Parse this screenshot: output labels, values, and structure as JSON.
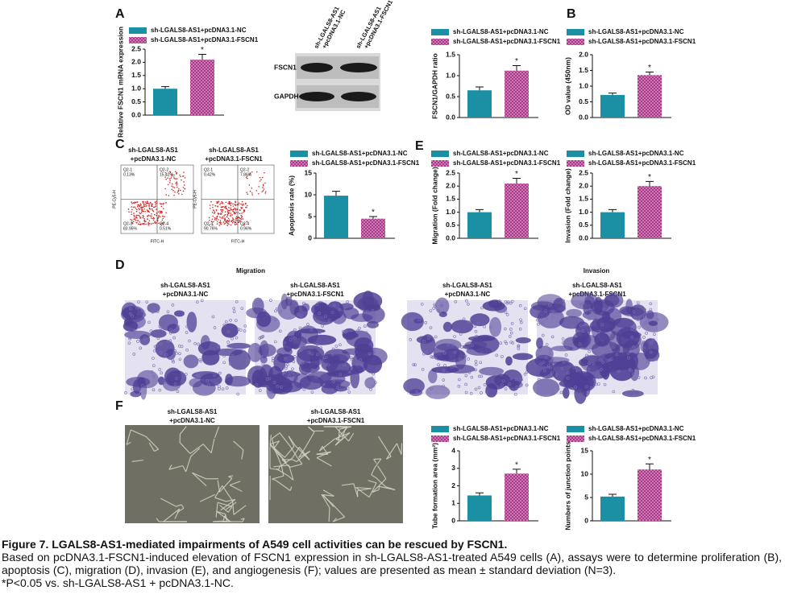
{
  "panel_labels": [
    "A",
    "B",
    "C",
    "D",
    "E",
    "F"
  ],
  "chart_data": [
    {
      "type": "bar",
      "ylabel": "Relative FSCN1 mRNA expression",
      "ylim": [
        0,
        2.5
      ],
      "yticks": [
        {
          "value": 0,
          "label": "0.0"
        },
        0.5,
        {
          "value": 1,
          "label": "1.0"
        },
        1.5,
        {
          "value": 2,
          "label": "2.0"
        },
        2.5
      ],
      "series": [
        {
          "name": "sh-LGALS8-AS1+pcDNA3.1-NC",
          "color": "#1b8fa3",
          "values": [
            1.0
          ],
          "errors": [
            0.08
          ]
        },
        {
          "name": "sh-LGALS8-AS1+pcDNA3.1-FSCN1",
          "color": "#a3307f",
          "pattern": "crosshatch",
          "values": [
            2.1
          ],
          "errors": [
            0.2
          ],
          "annotation": "*"
        }
      ]
    },
    {
      "type": "bar",
      "ylabel": "FSCN1/GAPDH ratio",
      "ylim": [
        0,
        1.5
      ],
      "yticks": [
        {
          "value": 0,
          "label": "0.0"
        },
        0.5,
        {
          "value": 1,
          "label": "1.0"
        },
        1.5
      ],
      "series": [
        {
          "name": "sh-LGALS8-AS1+pcDNA3.1-NC",
          "color": "#1b8fa3",
          "values": [
            0.65
          ],
          "errors": [
            0.08
          ]
        },
        {
          "name": "sh-LGALS8-AS1+pcDNA3.1-FSCN1",
          "color": "#a3307f",
          "pattern": "crosshatch",
          "values": [
            1.12
          ],
          "errors": [
            0.12
          ],
          "annotation": "*"
        }
      ]
    },
    {
      "type": "bar",
      "ylabel": "OD value (450nm)",
      "ylim": [
        0,
        2
      ],
      "yticks": [
        {
          "value": 0,
          "label": "0.0"
        },
        0.5,
        {
          "value": 1,
          "label": "1.0"
        },
        1.5,
        {
          "value": 2,
          "label": "2.0"
        }
      ],
      "series": [
        {
          "name": "sh-LGALS8-AS1+pcDNA3.1-NC",
          "color": "#1b8fa3",
          "values": [
            0.72
          ],
          "errors": [
            0.06
          ]
        },
        {
          "name": "sh-LGALS8-AS1+pcDNA3.1-FSCN1",
          "color": "#a3307f",
          "pattern": "crosshatch",
          "values": [
            1.35
          ],
          "errors": [
            0.1
          ],
          "annotation": "*"
        }
      ]
    },
    {
      "type": "bar",
      "ylabel": "Apoptosis rate (%)",
      "ylim": [
        0,
        15
      ],
      "yticks": [
        0,
        5,
        10,
        15
      ],
      "series": [
        {
          "name": "sh-LGALS8-AS1+pcDNA3.1-NC",
          "color": "#1b8fa3",
          "values": [
            9.8
          ],
          "errors": [
            1.0
          ]
        },
        {
          "name": "sh-LGALS8-AS1+pcDNA3.1-FSCN1",
          "color": "#a3307f",
          "pattern": "crosshatch",
          "values": [
            4.5
          ],
          "errors": [
            0.5
          ],
          "annotation": "*"
        }
      ]
    },
    {
      "type": "bar",
      "ylabel": "Migration (Fold change)",
      "ylim": [
        0,
        2.5
      ],
      "yticks": [
        {
          "value": 0,
          "label": "0.0"
        },
        0.5,
        {
          "value": 1,
          "label": "1.0"
        },
        1.5,
        {
          "value": 2,
          "label": "2.0"
        },
        2.5
      ],
      "series": [
        {
          "name": "sh-LGALS8-AS1+pcDNA3.1-NC",
          "color": "#1b8fa3",
          "values": [
            1.0
          ],
          "errors": [
            0.1
          ]
        },
        {
          "name": "sh-LGALS8-AS1+pcDNA3.1-FSCN1",
          "color": "#a3307f",
          "pattern": "crosshatch",
          "values": [
            2.1
          ],
          "errors": [
            0.2
          ],
          "annotation": "*"
        }
      ]
    },
    {
      "type": "bar",
      "ylabel": "Invasion (Fold change)",
      "ylim": [
        0,
        2.5
      ],
      "yticks": [
        {
          "value": 0,
          "label": "0.0"
        },
        0.5,
        {
          "value": 1,
          "label": "1.0"
        },
        1.5,
        {
          "value": 2,
          "label": "2.0"
        },
        2.5
      ],
      "series": [
        {
          "name": "sh-LGALS8-AS1+pcDNA3.1-NC",
          "color": "#1b8fa3",
          "values": [
            1.0
          ],
          "errors": [
            0.1
          ]
        },
        {
          "name": "sh-LGALS8-AS1+pcDNA3.1-FSCN1",
          "color": "#a3307f",
          "pattern": "crosshatch",
          "values": [
            2.0
          ],
          "errors": [
            0.18
          ],
          "annotation": "*"
        }
      ]
    },
    {
      "type": "bar",
      "ylabel": "Tube formation area (mm²)",
      "ylim": [
        0,
        4
      ],
      "yticks": [
        0,
        1,
        2,
        3,
        4
      ],
      "series": [
        {
          "name": "sh-LGALS8-AS1+pcDNA3.1-NC",
          "color": "#1b8fa3",
          "values": [
            1.45
          ],
          "errors": [
            0.15
          ]
        },
        {
          "name": "sh-LGALS8-AS1+pcDNA3.1-FSCN1",
          "color": "#a3307f",
          "pattern": "crosshatch",
          "values": [
            2.7
          ],
          "errors": [
            0.25
          ],
          "annotation": "*"
        }
      ]
    },
    {
      "type": "bar",
      "ylabel": "Numbers of junction points",
      "ylim": [
        0,
        15
      ],
      "yticks": [
        0,
        5,
        10,
        15
      ],
      "series": [
        {
          "name": "sh-LGALS8-AS1+pcDNA3.1-NC",
          "color": "#1b8fa3",
          "values": [
            5.2
          ],
          "errors": [
            0.5
          ]
        },
        {
          "name": "sh-LGALS8-AS1+pcDNA3.1-FSCN1",
          "color": "#a3307f",
          "pattern": "crosshatch",
          "values": [
            11
          ],
          "errors": [
            1.2
          ],
          "annotation": "*"
        }
      ]
    }
  ],
  "western_blot": {
    "lanes": [
      [
        "sh-LGALS8-AS1",
        "+pcDNA3.1-NC"
      ],
      [
        "sh-LGALS8-AS1",
        "+pcDNA3.1-FSCN1"
      ]
    ],
    "bands": [
      "FSCN1",
      "GAPDH"
    ]
  },
  "flow_cytometry": {
    "x_label": "FITC-H",
    "y_label": "PE-Cy5-H",
    "plots": [
      {
        "title": [
          "sh-LGALS8-AS1",
          "+pcDNA3.1-NC"
        ],
        "quadrants": [
          [
            "Q2-1",
            "0.13%"
          ],
          [
            "Q2-2",
            "15.42%"
          ],
          [
            "Q2-3",
            "83.95%"
          ],
          [
            "Q2-4",
            "0.51%"
          ]
        ]
      },
      {
        "title": [
          "sh-LGALS8-AS1",
          "+pcDNA3.1-FSCN1"
        ],
        "quadrants": [
          [
            "Q2-1",
            "0.42%"
          ],
          [
            "Q2-2",
            "7.86%"
          ],
          [
            "Q2-3",
            "90.76%"
          ],
          [
            "Q2-4",
            "0.96%"
          ]
        ]
      }
    ]
  },
  "transwell": [
    {
      "title": "Migration",
      "images": [
        [
          "sh-LGALS8-AS1",
          "+pcDNA3.1-NC"
        ],
        [
          "sh-LGALS8-AS1",
          "+pcDNA3.1-FSCN1"
        ]
      ]
    },
    {
      "title": "Invasion",
      "images": [
        [
          "sh-LGALS8-AS1",
          "+pcDNA3.1-NC"
        ],
        [
          "sh-LGALS8-AS1",
          "+pcDNA3.1-FSCN1"
        ]
      ]
    }
  ],
  "tube_formation": {
    "images": [
      [
        "sh-LGALS8-AS1",
        "+pcDNA3.1-NC"
      ],
      [
        "sh-LGALS8-AS1",
        "+pcDNA3.1-FSCN1"
      ]
    ]
  },
  "caption": {
    "title": "Figure 7. LGALS8-AS1-mediated impairments of A549 cell activities can be rescued by FSCN1.",
    "body": "Based on pcDNA3.1-FSCN1-induced elevation of FSCN1 expression in sh-LGALS8-AS1-treated A549 cells (A), assays were to determine proliferation (B), apoptosis (C), migration (D), invasion (E), and angiogenesis (F); values are presented as mean ± standard deviation (N=3).",
    "note": "*P<0.05 vs. sh-LGALS8-AS1 + pcDNA3.1-NC."
  }
}
